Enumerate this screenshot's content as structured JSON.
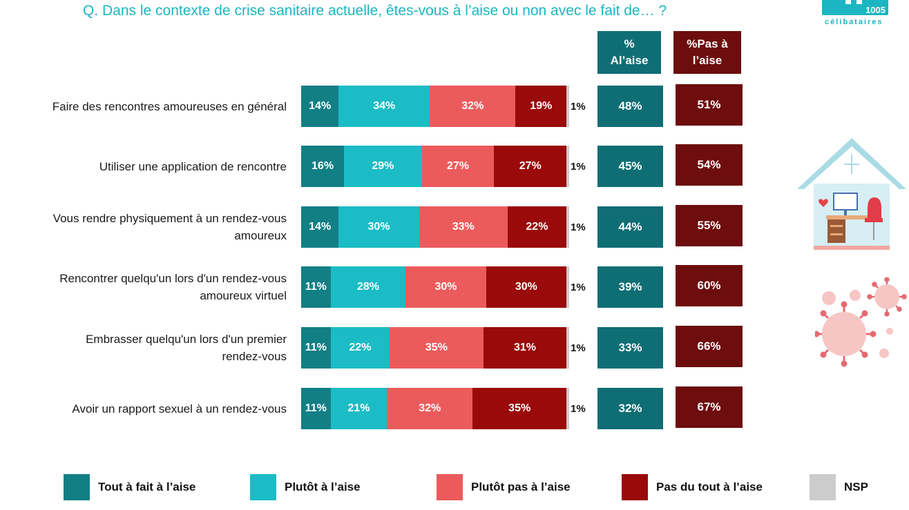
{
  "title": "Q. Dans le contexte de crise sanitaire actuelle, êtes-vous à l’aise ou non avec le fait de… ?",
  "logo": {
    "number": "1005",
    "word": "célibataires"
  },
  "headers": {
    "a_line1": "%",
    "a_line2": "Al’aise",
    "b_line1": "%Pas à",
    "b_line2": "l’aise"
  },
  "colors": {
    "tout_a_fait": "#127f85",
    "plutot": "#1bbcc6",
    "plutot_pas": "#ec5b5c",
    "pas_du_tout": "#9a0a0a",
    "nsp": "#cccccc",
    "total_aise": "#0f6e74",
    "total_pas": "#6d0d0d",
    "title": "#1bb6c1"
  },
  "chart_data": {
    "type": "bar",
    "orientation": "horizontal-stacked-100",
    "categories": [
      "Faire des rencontres amoureuses en général",
      "Utiliser une application de rencontre",
      "Vous rendre physiquement à un rendez-vous amoureux",
      "Rencontrer quelqu'un lors d'un rendez-vous amoureux virtuel",
      "Embrasser quelqu'un lors d'un premier rendez-vous",
      "Avoir un rapport sexuel à un rendez-vous"
    ],
    "series": [
      {
        "name": "Tout à fait à l’aise",
        "values": [
          14,
          16,
          14,
          11,
          11,
          11
        ]
      },
      {
        "name": "Plutôt à l’aise",
        "values": [
          34,
          29,
          30,
          28,
          22,
          21
        ]
      },
      {
        "name": "Plutôt pas à l’aise",
        "values": [
          32,
          27,
          33,
          30,
          35,
          32
        ]
      },
      {
        "name": "Pas du tout à l’aise",
        "values": [
          19,
          27,
          22,
          30,
          31,
          35
        ]
      },
      {
        "name": "NSP",
        "values": [
          1,
          1,
          1,
          1,
          1,
          1
        ]
      }
    ],
    "totals": {
      "aise": [
        48,
        45,
        44,
        39,
        33,
        32
      ],
      "pas_aise": [
        51,
        54,
        55,
        60,
        66,
        67
      ]
    },
    "value_suffix": "%",
    "xlim": [
      0,
      100
    ],
    "legend": "bottom"
  },
  "rows": [
    {
      "line1": "Faire des rencontres amoureuses en général",
      "line2": ""
    },
    {
      "line1": "Utiliser une application de rencontre",
      "line2": ""
    },
    {
      "line1": "Vous rendre physiquement à un rendez-vous",
      "line2": "amoureux"
    },
    {
      "line1": "Rencontrer quelqu'un lors d'un rendez-vous",
      "line2": "amoureux virtuel"
    },
    {
      "line1": "Embrasser quelqu'un lors d'un premier",
      "line2": "rendez-vous"
    },
    {
      "line1": "Avoir un rapport sexuel à un rendez-vous",
      "line2": ""
    }
  ],
  "legend": [
    "Tout à fait à l’aise",
    "Plutôt à l’aise",
    "Plutôt pas à l’aise",
    "Pas du tout à l’aise",
    "NSP"
  ]
}
